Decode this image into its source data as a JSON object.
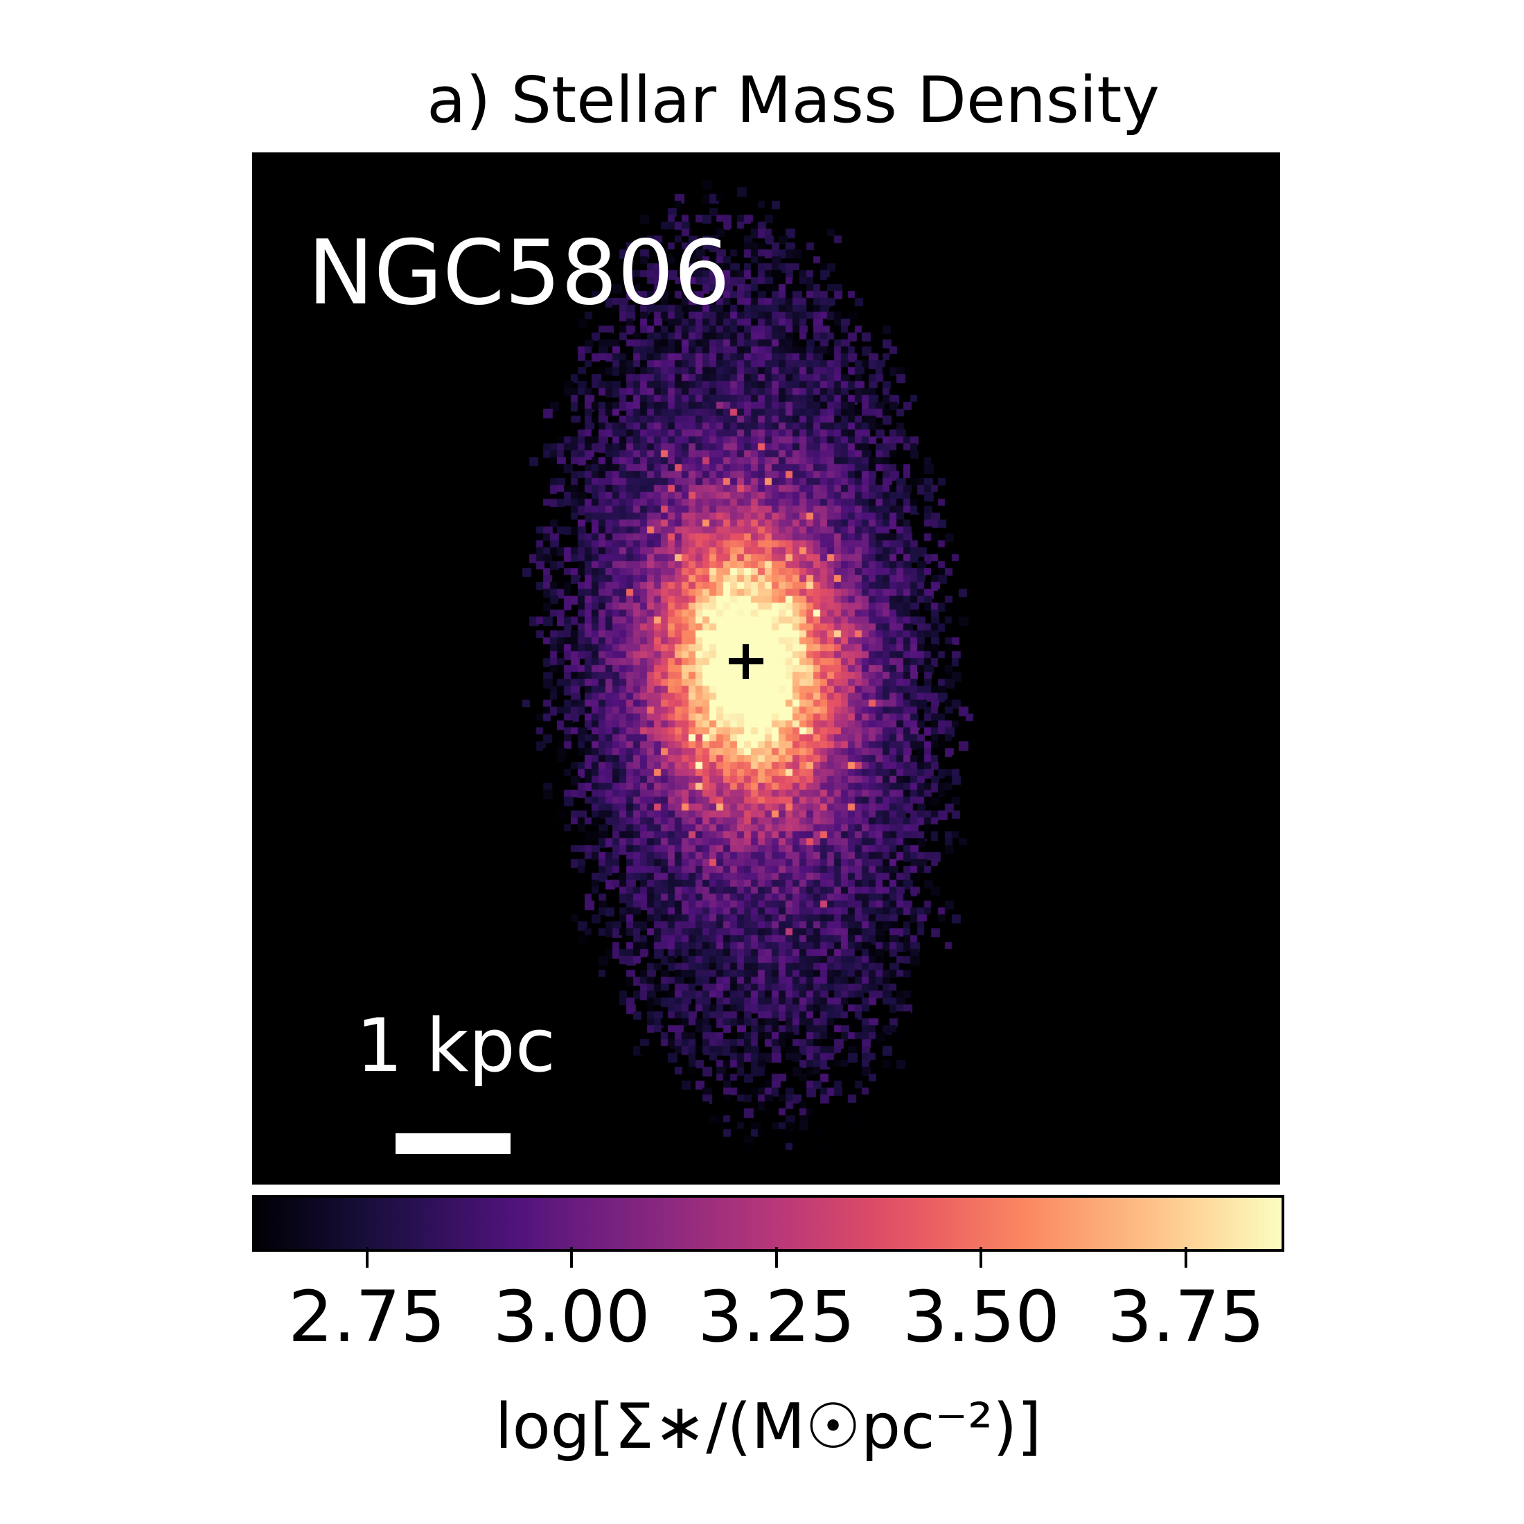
{
  "chart_data": {
    "type": "heatmap",
    "title": "a) Stellar Mass Density",
    "annotation_galaxy": "NGC5806",
    "scale_bar_label": "1 kpc",
    "colormap": "magma",
    "colorbar": {
      "orientation": "horizontal",
      "placement": "bottom",
      "range": [
        2.61,
        3.87
      ],
      "ticks": [
        2.75,
        3.0,
        3.25,
        3.5,
        3.75
      ],
      "tick_labels": [
        "2.75",
        "3.00",
        "3.25",
        "3.50",
        "3.75"
      ],
      "label": "log[Σ∗/(M☉pc⁻²)]"
    },
    "background_color": "#000000",
    "center_marker": "plus",
    "peak_value": 3.87,
    "min_value": 2.61
  }
}
